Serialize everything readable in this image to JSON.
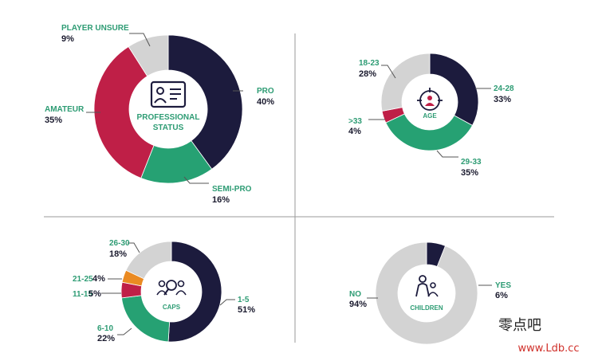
{
  "colors": {
    "navy": "#1c1b3d",
    "green": "#26a173",
    "crimson": "#bf1f47",
    "gray": "#d3d3d3",
    "orange": "#ea8a22",
    "label_green": "#2e9c74",
    "divider": "#9a9a9a"
  },
  "chart_data": [
    {
      "type": "pie",
      "variant": "donut",
      "center_label": [
        "PROFESSIONAL",
        "STATUS"
      ],
      "center_icon": "id-card-icon",
      "slices": [
        {
          "label": "PRO",
          "value": 40,
          "display": "40%",
          "color": "#1c1b3d"
        },
        {
          "label": "SEMI-PRO",
          "value": 16,
          "display": "16%",
          "color": "#26a173"
        },
        {
          "label": "AMATEUR",
          "value": 35,
          "display": "35%",
          "color": "#bf1f47"
        },
        {
          "label": "PLAYER UNSURE",
          "value": 9,
          "display": "9%",
          "color": "#d3d3d3"
        }
      ]
    },
    {
      "type": "pie",
      "variant": "donut",
      "center_label": [
        "AGE"
      ],
      "center_icon": "target-person-icon",
      "slices": [
        {
          "label": "24-28",
          "value": 33,
          "display": "33%",
          "color": "#1c1b3d"
        },
        {
          "label": "29-33",
          "value": 35,
          "display": "35%",
          "color": "#26a173"
        },
        {
          "label": ">33",
          "value": 4,
          "display": "4%",
          "color": "#bf1f47"
        },
        {
          "label": "18-23",
          "value": 28,
          "display": "28%",
          "color": "#d3d3d3"
        }
      ]
    },
    {
      "type": "pie",
      "variant": "donut",
      "center_label": [
        "CAPS"
      ],
      "center_icon": "group-search-icon",
      "slices": [
        {
          "label": "1-5",
          "value": 51,
          "display": "51%",
          "color": "#1c1b3d"
        },
        {
          "label": "6-10",
          "value": 22,
          "display": "22%",
          "color": "#26a173"
        },
        {
          "label": "11-15",
          "value": 5,
          "display": "5%",
          "color": "#bf1f47"
        },
        {
          "label": "21-25",
          "value": 4,
          "display": "4%",
          "color": "#ea8a22"
        },
        {
          "label": "26-30",
          "value": 18,
          "display": "18%",
          "color": "#d3d3d3"
        }
      ]
    },
    {
      "type": "pie",
      "variant": "donut",
      "center_label": [
        "CHILDREN"
      ],
      "center_icon": "parent-child-icon",
      "slices": [
        {
          "label": "YES",
          "value": 6,
          "display": "6%",
          "color": "#1c1b3d"
        },
        {
          "label": "NO",
          "value": 94,
          "display": "94%",
          "color": "#d3d3d3"
        }
      ]
    }
  ],
  "watermark": {
    "text": "零点吧",
    "url": "www.Ldb.cc"
  }
}
